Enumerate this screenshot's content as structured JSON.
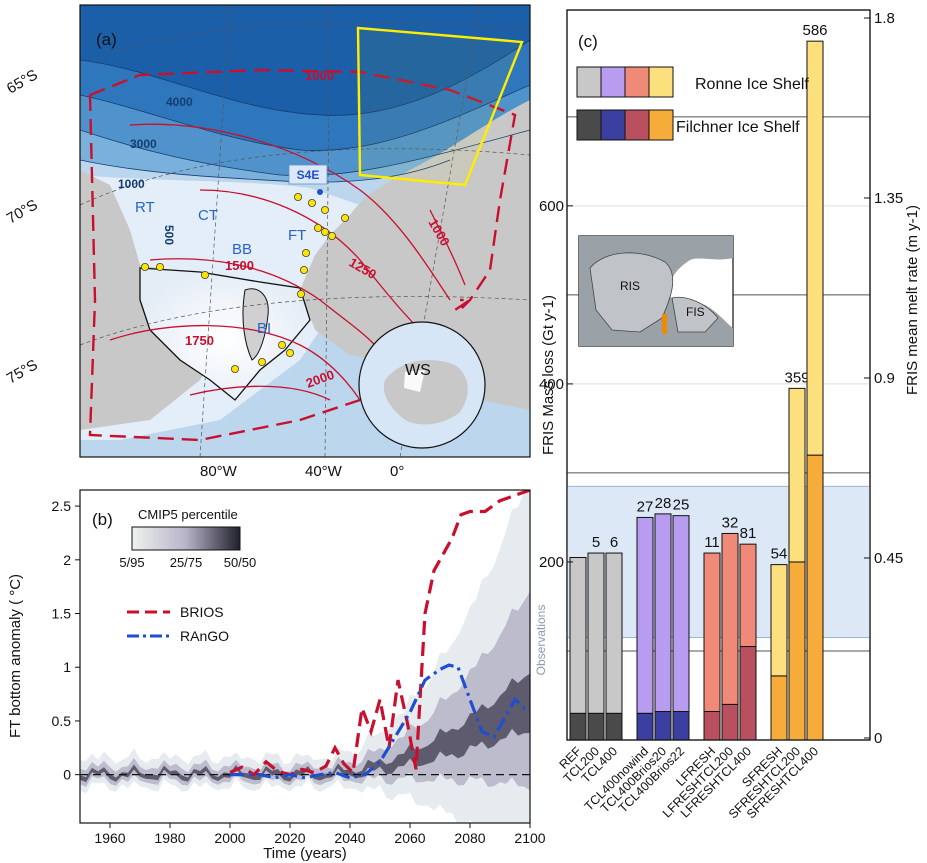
{
  "panel_a": {
    "label": "(a)",
    "lat_labels": [
      "65°S",
      "70°S",
      "75°S"
    ],
    "lon_labels": [
      "80°W",
      "40°W",
      "0°"
    ],
    "bathy_labels": [
      "4000",
      "3000",
      "1000",
      "500"
    ],
    "isoline_labels": [
      "1000",
      "1250",
      "1500",
      "1750",
      "2000",
      "1000"
    ],
    "region_labels": [
      "RT",
      "CT",
      "BB",
      "FT",
      "BI"
    ],
    "station_label": "S4E",
    "inset_label": "WS",
    "colors": {
      "ocean_deep": "#1a5fa8",
      "land": "#c8c8c8",
      "isoline": "#c8102e",
      "box": "#ffee00",
      "stations": "#ffe400"
    }
  },
  "panel_b": {
    "label": "(b)",
    "legend_title": "CMIP5 percentile",
    "colorbar_ticks": [
      "5/95",
      "25/75",
      "50/50"
    ],
    "series_labels": [
      "BRIOS",
      "RAnGO"
    ]
  },
  "panel_c": {
    "label": "(c)",
    "legend": [
      "Ronne Ice Shelf",
      "Filchner Ice Shelf"
    ],
    "inset_labels": [
      "RIS",
      "FIS"
    ],
    "observations_label": "Observations"
  },
  "chart_data": [
    {
      "type": "line",
      "xlabel": "Time (years)",
      "ylabel": "FT bottom anomaly ( °C)",
      "xlim": [
        1950,
        2100
      ],
      "ylim": [
        -0.45,
        2.65
      ],
      "xticks": [
        1960,
        1980,
        2000,
        2020,
        2040,
        2060,
        2080,
        2100
      ],
      "yticks": [
        0,
        0.5,
        1,
        1.5,
        2,
        2.5
      ],
      "series": [
        {
          "name": "BRIOS",
          "style": "dashed",
          "color": "#c8102e",
          "x": [
            2000,
            2004,
            2008,
            2012,
            2016,
            2020,
            2024,
            2028,
            2032,
            2035,
            2038,
            2041,
            2044,
            2047,
            2050,
            2053,
            2056,
            2059,
            2062,
            2065,
            2068,
            2071,
            2074,
            2077,
            2080,
            2085,
            2090,
            2095,
            2100
          ],
          "y": [
            0.02,
            0.07,
            0.0,
            0.12,
            0.03,
            0.0,
            0.05,
            0.02,
            0.08,
            0.25,
            0.1,
            0.02,
            0.62,
            0.4,
            0.7,
            0.25,
            0.88,
            0.5,
            0.05,
            1.5,
            1.9,
            2.05,
            2.2,
            2.42,
            2.45,
            2.45,
            2.55,
            2.6,
            2.65
          ]
        },
        {
          "name": "RAnGO",
          "style": "dashdot",
          "color": "#1f4fd0",
          "x": [
            2000,
            2010,
            2015,
            2020,
            2025,
            2030,
            2035,
            2040,
            2045,
            2050,
            2055,
            2060,
            2065,
            2070,
            2073,
            2076,
            2080,
            2084,
            2088,
            2092,
            2095,
            2098,
            2100
          ],
          "y": [
            0.0,
            0.0,
            -0.03,
            0.0,
            -0.03,
            0.0,
            0.02,
            -0.03,
            0.0,
            0.12,
            0.35,
            0.58,
            0.88,
            0.98,
            1.02,
            1.0,
            0.7,
            0.4,
            0.35,
            0.55,
            0.7,
            0.62,
            0.65
          ]
        }
      ]
    },
    {
      "type": "bar",
      "stacked": true,
      "ylabel": "FRIS Mass loss (Gt y-1)",
      "y2label": "FRIS mean melt rate (m y-1)",
      "ylim": [
        0,
        820
      ],
      "yticks": [
        200,
        400,
        600
      ],
      "y2ticks": [
        "0",
        "0.45",
        "0.9",
        "1.35",
        "1.8"
      ],
      "observation_band": [
        115,
        285
      ],
      "groups": [
        [
          0,
          1,
          2
        ],
        [
          3,
          4,
          5
        ],
        [
          6,
          7,
          8
        ],
        [
          9,
          10,
          11
        ]
      ],
      "categories": [
        "REF",
        "TCL200",
        "TCL400",
        "TCL400nowind",
        "TCL400Brios20",
        "TCL400Brios22",
        "LFRESH",
        "LFRESHTCL200",
        "LFRESHTCL400",
        "SFRESH",
        "SFRESHTCL200",
        "SFRESHTCL400"
      ],
      "series": [
        {
          "name": "Filchner Ice Shelf",
          "values": [
            30,
            30,
            30,
            30,
            32,
            32,
            32,
            40,
            105,
            72,
            200,
            320
          ]
        },
        {
          "name": "Ronne Ice Shelf",
          "values": [
            175,
            180,
            180,
            220,
            222,
            220,
            178,
            192,
            115,
            125,
            195,
            465
          ]
        }
      ],
      "top_labels": [
        "",
        "5",
        "6",
        "27",
        "28",
        "25",
        "11",
        "32",
        "81",
        "54",
        "359",
        "586"
      ],
      "group_colors": [
        {
          "ronne": "#c8c8c8",
          "filchner": "#4a4a4a"
        },
        {
          "ronne": "#b89cf0",
          "filchner": "#3b3fa0"
        },
        {
          "ronne": "#f08a78",
          "filchner": "#b85060"
        },
        {
          "ronne": "#fce07e",
          "filchner": "#f6ac3a"
        }
      ]
    }
  ]
}
